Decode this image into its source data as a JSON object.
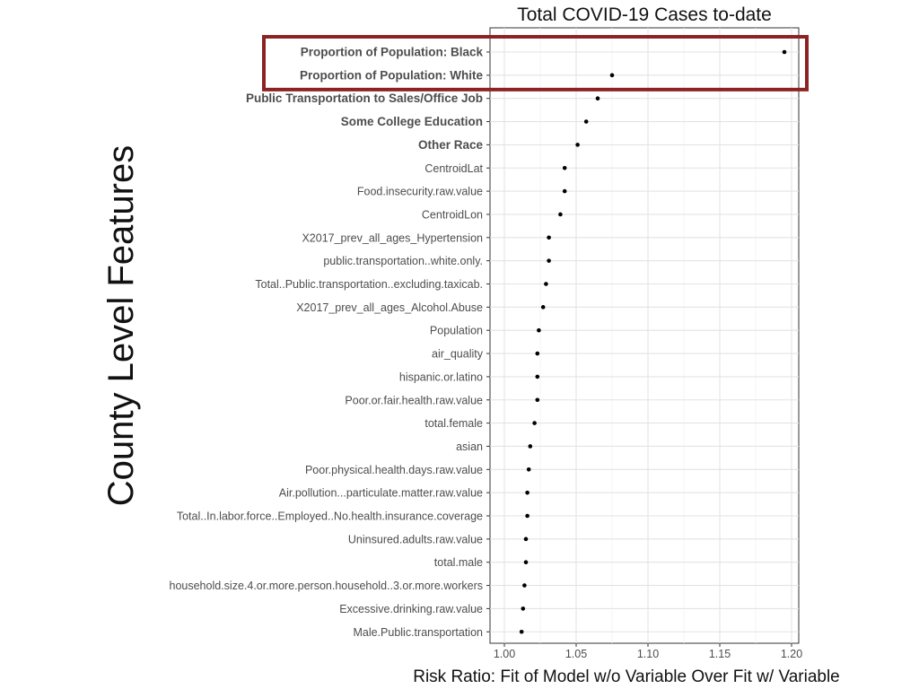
{
  "chart_data": {
    "type": "scatter",
    "title": "Total COVID-19 Cases to-date",
    "xlabel": "Risk Ratio: Fit of Model w/o Variable Over Fit w/ Variable",
    "ylabel": "County Level Features",
    "xlim": [
      0.99,
      1.205
    ],
    "x_ticks": [
      "1.00",
      "1.05",
      "1.10",
      "1.15",
      "1.20"
    ],
    "grid": true,
    "accent_color": "#8b2323",
    "highlight_box": [
      "Proportion of Population: Black",
      "Proportion of Population: White"
    ],
    "points": [
      {
        "label": "Proportion of Population: Black",
        "value": 1.195,
        "style": "accent"
      },
      {
        "label": "Proportion of Population: White",
        "value": 1.075,
        "style": "accent"
      },
      {
        "label": "Public Transportation to Sales/Office Job",
        "value": 1.065,
        "style": "bold"
      },
      {
        "label": "Some College Education",
        "value": 1.057,
        "style": "bold"
      },
      {
        "label": "Other Race",
        "value": 1.051,
        "style": "accent"
      },
      {
        "label": "CentroidLat",
        "value": 1.042,
        "style": "normal"
      },
      {
        "label": "Food.insecurity.raw.value",
        "value": 1.042,
        "style": "normal"
      },
      {
        "label": "CentroidLon",
        "value": 1.039,
        "style": "normal"
      },
      {
        "label": "X2017_prev_all_ages_Hypertension",
        "value": 1.031,
        "style": "normal"
      },
      {
        "label": "public.transportation..white.only.",
        "value": 1.031,
        "style": "normal"
      },
      {
        "label": "Total..Public.transportation..excluding.taxicab.",
        "value": 1.029,
        "style": "normal"
      },
      {
        "label": "X2017_prev_all_ages_Alcohol.Abuse",
        "value": 1.027,
        "style": "normal"
      },
      {
        "label": "Population",
        "value": 1.024,
        "style": "normal"
      },
      {
        "label": "air_quality",
        "value": 1.023,
        "style": "normal"
      },
      {
        "label": "hispanic.or.latino",
        "value": 1.023,
        "style": "normal"
      },
      {
        "label": "Poor.or.fair.health.raw.value",
        "value": 1.023,
        "style": "normal"
      },
      {
        "label": "total.female",
        "value": 1.021,
        "style": "normal"
      },
      {
        "label": "asian",
        "value": 1.018,
        "style": "normal"
      },
      {
        "label": "Poor.physical.health.days.raw.value",
        "value": 1.017,
        "style": "normal"
      },
      {
        "label": "Air.pollution...particulate.matter.raw.value",
        "value": 1.016,
        "style": "normal"
      },
      {
        "label": "Total..In.labor.force..Employed..No.health.insurance.coverage",
        "value": 1.016,
        "style": "normal"
      },
      {
        "label": "Uninsured.adults.raw.value",
        "value": 1.015,
        "style": "normal"
      },
      {
        "label": "total.male",
        "value": 1.015,
        "style": "normal"
      },
      {
        "label": "household.size.4.or.more.person.household..3.or.more.workers",
        "value": 1.014,
        "style": "normal"
      },
      {
        "label": "Excessive.drinking.raw.value",
        "value": 1.013,
        "style": "normal"
      },
      {
        "label": "Male.Public.transportation",
        "value": 1.012,
        "style": "normal"
      }
    ]
  }
}
